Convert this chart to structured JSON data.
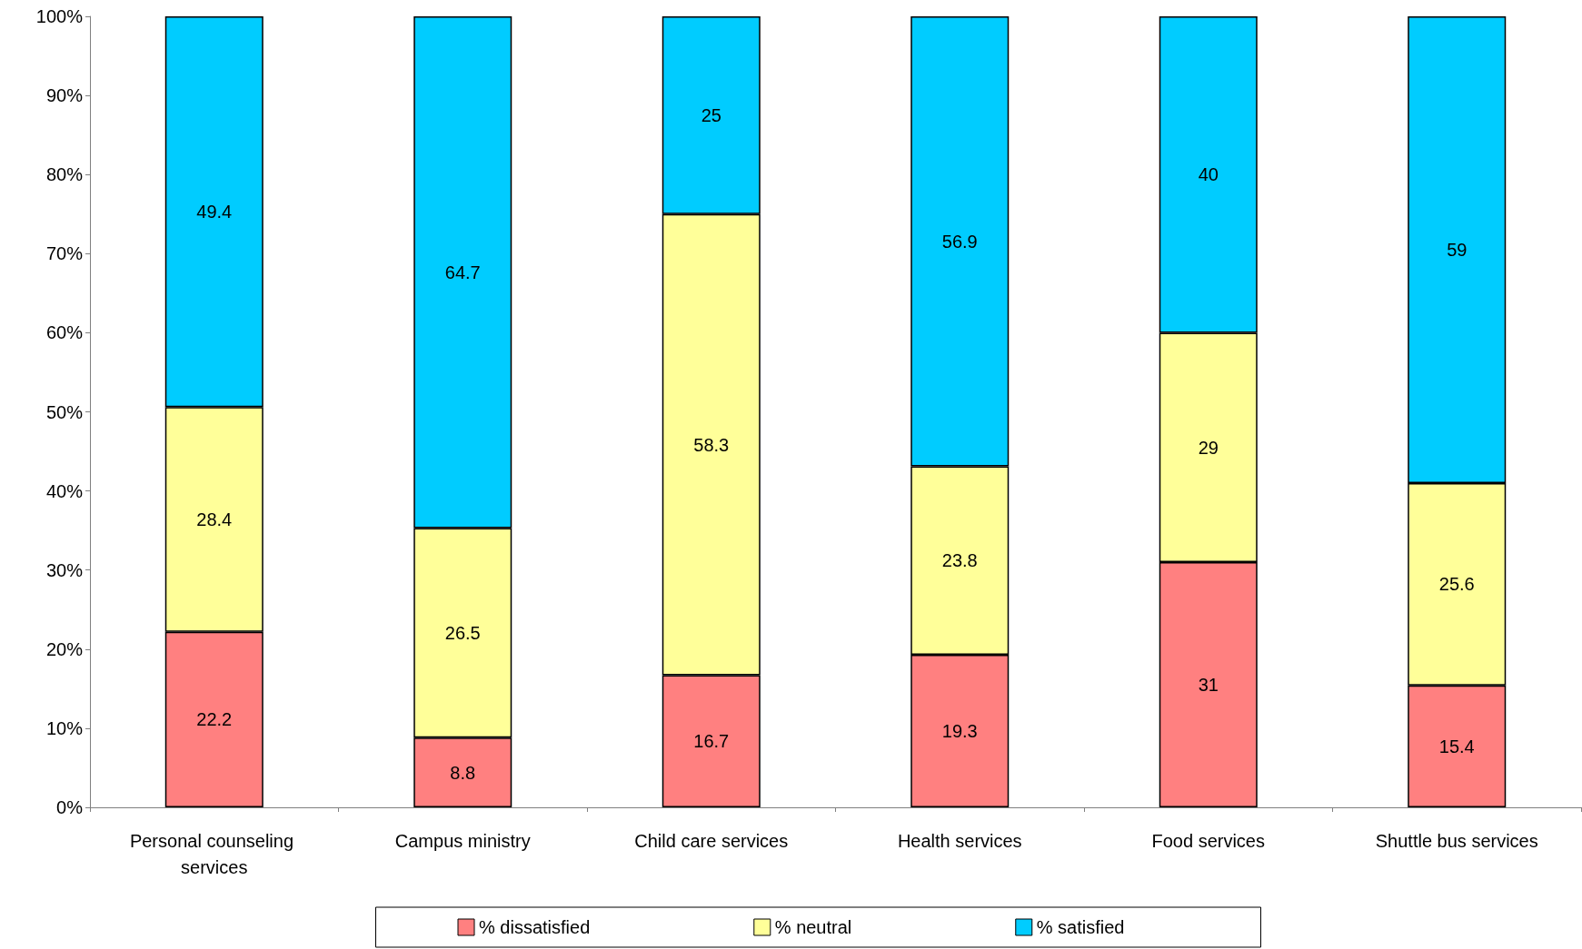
{
  "chart_data": {
    "type": "bar",
    "stacked": true,
    "categories": [
      "Personal counseling services",
      "Campus ministry",
      "Child care services",
      "Health services",
      "Food services",
      "Shuttle bus services"
    ],
    "series": [
      {
        "name": "% dissatisfied",
        "color": "#ff8080",
        "values": [
          22.2,
          8.8,
          16.7,
          19.3,
          31,
          15.4
        ]
      },
      {
        "name": "% neutral",
        "color": "#ffff99",
        "values": [
          28.4,
          26.5,
          58.3,
          23.8,
          29,
          25.6
        ]
      },
      {
        "name": "% satisfied",
        "color": "#00ccff",
        "values": [
          49.4,
          64.7,
          25,
          56.9,
          40,
          59
        ]
      }
    ],
    "ylim": [
      0,
      100
    ],
    "yticks": [
      {
        "value": 0,
        "label": "0%"
      },
      {
        "value": 10,
        "label": "10%"
      },
      {
        "value": 20,
        "label": "20%"
      },
      {
        "value": 30,
        "label": "30%"
      },
      {
        "value": 40,
        "label": "40%"
      },
      {
        "value": 50,
        "label": "50%"
      },
      {
        "value": 60,
        "label": "60%"
      },
      {
        "value": 70,
        "label": "70%"
      },
      {
        "value": 80,
        "label": "80%"
      },
      {
        "value": 90,
        "label": "90%"
      },
      {
        "value": 100,
        "label": "100%"
      }
    ],
    "grid": false,
    "legend": "bottom",
    "data_labels": true
  }
}
